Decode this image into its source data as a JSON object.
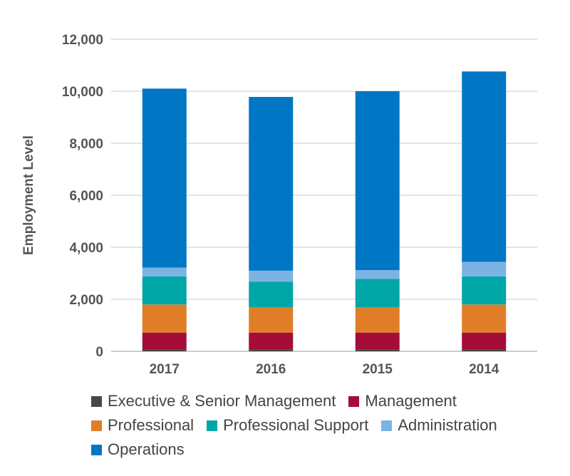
{
  "chart_data": {
    "type": "bar",
    "stacked": true,
    "categories": [
      "2017",
      "2016",
      "2015",
      "2014"
    ],
    "ylabel": "Employment Level",
    "ylim": [
      0,
      12000
    ],
    "yticks": [
      0,
      2000,
      4000,
      6000,
      8000,
      10000,
      12000
    ],
    "ytick_labels": [
      "0",
      "2,000",
      "4,000",
      "6,000",
      "8,000",
      "10,000",
      "12,000"
    ],
    "grid": true,
    "legend_placement": "bottom",
    "series": [
      {
        "name": "Executive & Senior Management",
        "color": "#434a45",
        "values": [
          80,
          80,
          80,
          80
        ]
      },
      {
        "name": "Management",
        "color": "#a50d38",
        "values": [
          640,
          640,
          640,
          640
        ]
      },
      {
        "name": "Professional",
        "color": "#e07e27",
        "values": [
          1080,
          980,
          980,
          1080
        ]
      },
      {
        "name": "Professional Support",
        "color": "#00a6a6",
        "values": [
          1080,
          980,
          1080,
          1080
        ]
      },
      {
        "name": "Administration",
        "color": "#7cb3e5",
        "values": [
          340,
          420,
          340,
          560
        ]
      },
      {
        "name": "Operations",
        "color": "#0077c4",
        "values": [
          6880,
          6680,
          6880,
          7320
        ]
      }
    ]
  }
}
